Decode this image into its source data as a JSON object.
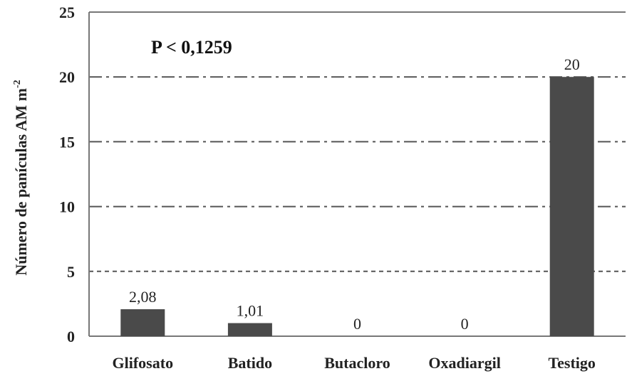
{
  "chart_data": {
    "type": "bar",
    "categories": [
      "Glifosato",
      "Batido",
      "Butacloro",
      "Oxadiargil",
      "Testigo"
    ],
    "values": [
      2.08,
      1.01,
      0,
      0,
      20
    ],
    "data_labels": [
      "2,08",
      "1,01",
      "0",
      "0",
      "20"
    ],
    "ylabel": "Número de panículas AM m",
    "ylabel_superscript": "-2",
    "ylim": [
      0,
      25
    ],
    "yticks": [
      0,
      5,
      10,
      15,
      20,
      25
    ],
    "ytick_labels": [
      "0",
      "5",
      "10",
      "15",
      "20",
      "25"
    ],
    "annotation": "P < 0,1259",
    "grid": true,
    "legend": "none",
    "bar_color": "#4a4a4a",
    "grid_color": "#555555",
    "axis_color": "#777777"
  }
}
